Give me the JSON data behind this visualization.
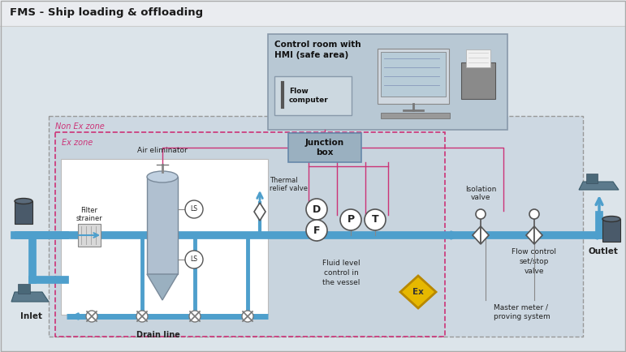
{
  "bg_color": "#dce4ea",
  "title_area_color": "#e8edf0",
  "title": "FMS - Ship loading & offloading",
  "pipe_color": "#4e9fcc",
  "pipe_lw": 7,
  "signal_color": "#cc3377",
  "ctrl_room_bg": "#b8c8d4",
  "ctrl_room_border": "#8899aa",
  "fc_box_bg": "#ccd8e0",
  "jb_bg": "#9ab0c0",
  "jb_border": "#6688aa",
  "white_box_bg": "#ffffff",
  "white_box_border": "#bbbbbb",
  "non_ex_bg": "#cdd8e2",
  "non_ex_border": "#999999",
  "ex_bg": "#c8d4de",
  "ex_border": "#cc3377",
  "non_ex_label": "Non Ex zone",
  "ex_label": "Ex zone",
  "labels": {
    "title": "FMS - Ship loading & offloading",
    "control_room": "Control room with\nHMI (safe area)",
    "flow_computer": "Flow\ncomputer",
    "junction_box": "Junction\nbox",
    "air_eliminator": "Air eliminator",
    "filter_strainer": "Filter\nstrainer",
    "inlet": "Inlet",
    "outlet": "Outlet",
    "thermal_relief": "Thermal\nrelief valve",
    "isolation_valve": "Isolation\nvalve",
    "fluid_level": "Fluid level\ncontrol in\nthe vessel",
    "drain_line": "Drain line",
    "flow_control": "Flow control\nset/stop\nvalve",
    "master_meter": "Master meter /\nproving system"
  }
}
